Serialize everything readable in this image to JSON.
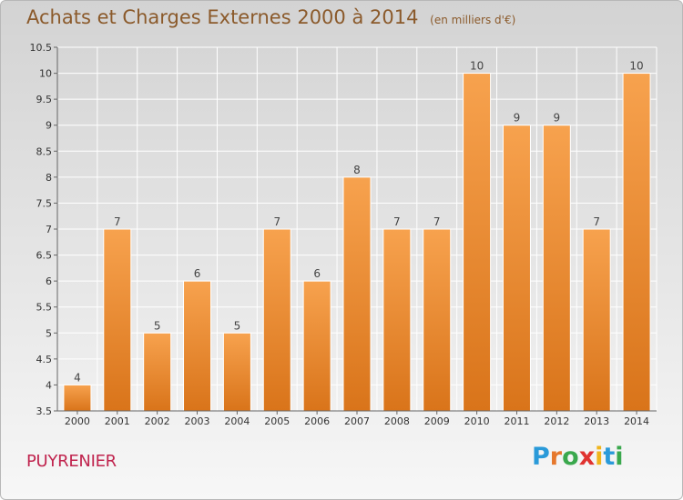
{
  "header": {
    "title": "Achats et Charges Externes 2000 à 2014",
    "subtitle": "(en milliers d'€)"
  },
  "footer": {
    "commune": "PUYRENIER",
    "brand_letters": [
      "P",
      "r",
      "o",
      "x",
      "i",
      "t",
      "i"
    ],
    "brand_colors": [
      "#2a9ad9",
      "#e6782c",
      "#3aa84d",
      "#e0322f",
      "#f0b51c",
      "#2a9ad9",
      "#3aa84d"
    ]
  },
  "chart_data": {
    "type": "bar",
    "categories": [
      "2000",
      "2001",
      "2002",
      "2003",
      "2004",
      "2005",
      "2006",
      "2007",
      "2008",
      "2009",
      "2010",
      "2011",
      "2012",
      "2013",
      "2014"
    ],
    "values": [
      4,
      7,
      5,
      6,
      5,
      7,
      6,
      8,
      7,
      7,
      10,
      9,
      9,
      7,
      10
    ],
    "data_labels": [
      "4",
      "7",
      "5",
      "6",
      "5",
      "7",
      "6",
      "8",
      "7",
      "7",
      "10",
      "9",
      "9",
      "7",
      "10"
    ],
    "ylim": [
      3.5,
      10.5
    ],
    "yticks": [
      "3.5",
      "4",
      "4.5",
      "5",
      "5.5",
      "6",
      "6.5",
      "7",
      "7.5",
      "8",
      "8.5",
      "9",
      "9.5",
      "10",
      "10.5"
    ],
    "ytick_values": [
      3.5,
      4,
      4.5,
      5,
      5.5,
      6,
      6.5,
      7,
      7.5,
      8,
      8.5,
      9,
      9.5,
      10,
      10.5
    ],
    "grid": true,
    "bar_color_top": "#f7a24e",
    "bar_color_bottom": "#d9741a"
  }
}
